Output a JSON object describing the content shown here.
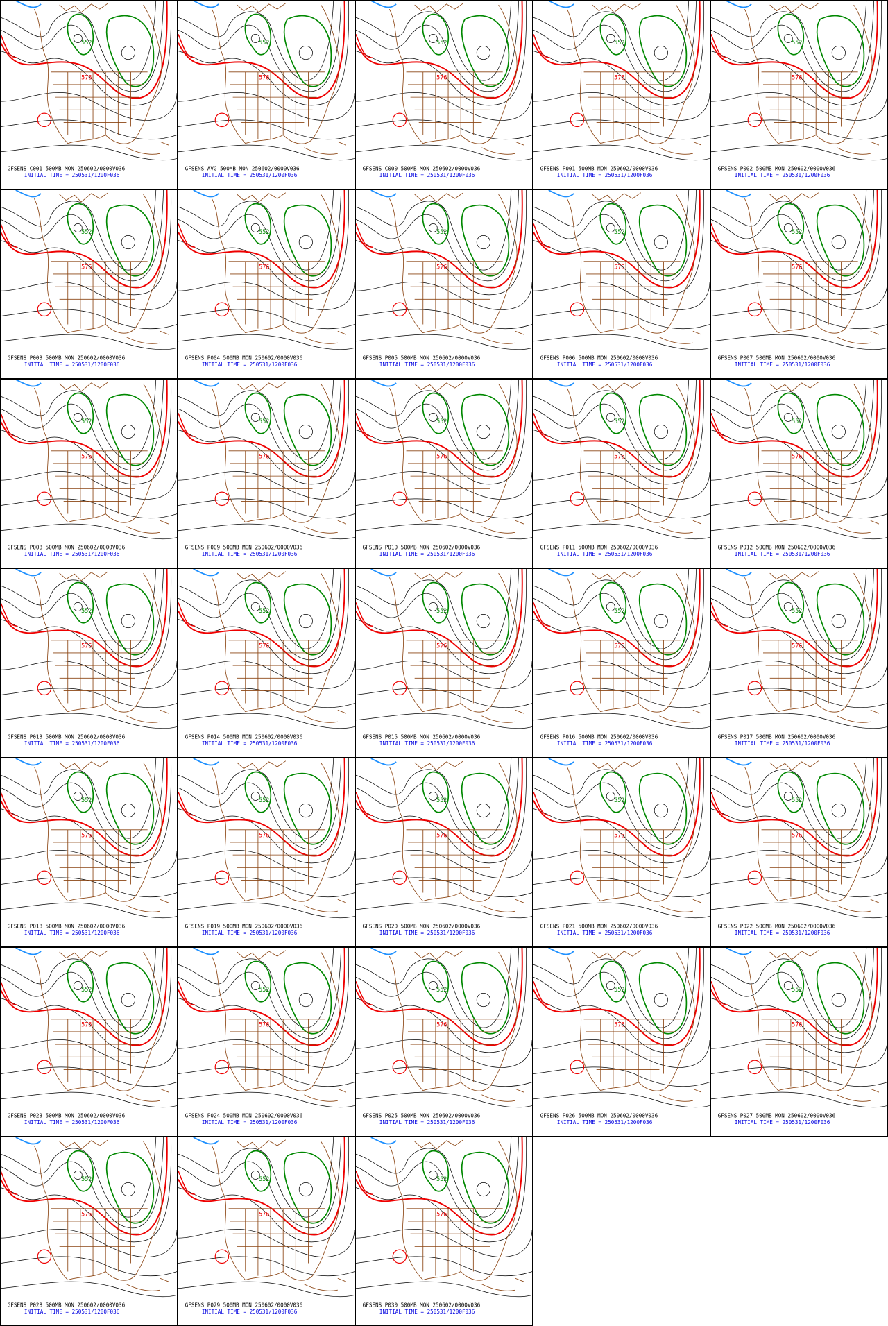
{
  "panels": [
    {
      "title": "GFSENS C001 500MB MON 250602/0000V036",
      "init": "INITIAL TIME = 250531/1200F036",
      "contour_labels": [
        "552",
        "576"
      ]
    },
    {
      "title": "GFSENS AVG 500MB MON 250602/0000V036",
      "init": "INITIAL TIME = 250531/1200F036",
      "contour_labels": [
        "552",
        "576"
      ]
    },
    {
      "title": "GFSENS C000 500MB MON 250602/0000V036",
      "init": "INITIAL TIME = 250531/1200F036",
      "contour_labels": [
        "552",
        "576"
      ]
    },
    {
      "title": "GFSENS P001 500MB MON 250602/0000V036",
      "init": "INITIAL TIME = 250531/1200F036",
      "contour_labels": [
        "552",
        "576"
      ]
    },
    {
      "title": "GFSENS P002 500MB MON 250602/0000V036",
      "init": "INITIAL TIME = 250531/1200F036",
      "contour_labels": [
        "552",
        "576"
      ]
    },
    {
      "title": "GFSENS P003 500MB MON 250602/0000V036",
      "init": "INITIAL TIME = 250531/1200F036",
      "contour_labels": [
        "552",
        "576"
      ]
    },
    {
      "title": "GFSENS P004 500MB MON 250602/0000V036",
      "init": "INITIAL TIME = 250531/1200F036",
      "contour_labels": [
        "552",
        "576"
      ]
    },
    {
      "title": "GFSENS P005 500MB MON 250602/0000V036",
      "init": "INITIAL TIME = 250531/1200F036",
      "contour_labels": [
        "552",
        "576"
      ]
    },
    {
      "title": "GFSENS P006 500MB MON 250602/0000V036",
      "init": "INITIAL TIME = 250531/1200F036",
      "contour_labels": [
        "552",
        "576"
      ]
    },
    {
      "title": "GFSENS P007 500MB MON 250602/0000V036",
      "init": "INITIAL TIME = 250531/1200F036",
      "contour_labels": [
        "552",
        "576"
      ]
    },
    {
      "title": "GFSENS P008 500MB MON 250602/0000V036",
      "init": "INITIAL TIME = 250531/1200F036",
      "contour_labels": [
        "552",
        "576"
      ]
    },
    {
      "title": "GFSENS P009 500MB MON 250602/0000V036",
      "init": "INITIAL TIME = 250531/1200F036",
      "contour_labels": [
        "552",
        "576"
      ]
    },
    {
      "title": "GFSENS P010 500MB MON 250602/0000V036",
      "init": "INITIAL TIME = 250531/1200F036",
      "contour_labels": [
        "552",
        "576"
      ]
    },
    {
      "title": "GFSENS P011 500MB MON 250602/0000V036",
      "init": "INITIAL TIME = 250531/1200F036",
      "contour_labels": [
        "552",
        "576"
      ]
    },
    {
      "title": "GFSENS P012 500MB MON 250602/0000V036",
      "init": "INITIAL TIME = 250531/1200F036",
      "contour_labels": [
        "552",
        "576"
      ]
    },
    {
      "title": "GFSENS P013 500MB MON 250602/0000V036",
      "init": "INITIAL TIME = 250531/1200F036",
      "contour_labels": [
        "552",
        "576"
      ]
    },
    {
      "title": "GFSENS P014 500MB MON 250602/0000V036",
      "init": "INITIAL TIME = 250531/1200F036",
      "contour_labels": [
        "552",
        "576"
      ]
    },
    {
      "title": "GFSENS P015 500MB MON 250602/0000V036",
      "init": "INITIAL TIME = 250531/1200F036",
      "contour_labels": [
        "552",
        "576"
      ]
    },
    {
      "title": "GFSENS P016 500MB MON 250602/0000V036",
      "init": "INITIAL TIME = 250531/1200F036",
      "contour_labels": [
        "552",
        "576"
      ]
    },
    {
      "title": "GFSENS P017 500MB MON 250602/0000V036",
      "init": "INITIAL TIME = 250531/1200F036",
      "contour_labels": [
        "552",
        "576"
      ]
    },
    {
      "title": "GFSENS P018 500MB MON 250602/0000V036",
      "init": "INITIAL TIME = 250531/1200F036",
      "contour_labels": [
        "552",
        "576"
      ]
    },
    {
      "title": "GFSENS P019 500MB MON 250602/0000V036",
      "init": "INITIAL TIME = 250531/1200F036",
      "contour_labels": [
        "552",
        "576"
      ]
    },
    {
      "title": "GFSENS P020 500MB MON 250602/0000V036",
      "init": "INITIAL TIME = 250531/1200F036",
      "contour_labels": [
        "552",
        "576"
      ]
    },
    {
      "title": "GFSENS P021 500MB MON 250602/0000V036",
      "init": "INITIAL TIME = 250531/1200F036",
      "contour_labels": [
        "552",
        "576"
      ]
    },
    {
      "title": "GFSENS P022 500MB MON 250602/0000V036",
      "init": "INITIAL TIME = 250531/1200F036",
      "contour_labels": [
        "552",
        "576"
      ]
    },
    {
      "title": "GFSENS P023 500MB MON 250602/0000V036",
      "init": "INITIAL TIME = 250531/1200F036",
      "contour_labels": [
        "552",
        "576"
      ]
    },
    {
      "title": "GFSENS P024 500MB MON 250602/0000V036",
      "init": "INITIAL TIME = 250531/1200F036",
      "contour_labels": [
        "552",
        "576"
      ]
    },
    {
      "title": "GFSENS P025 500MB MON 250602/0000V036",
      "init": "INITIAL TIME = 250531/1200F036",
      "contour_labels": [
        "552",
        "576"
      ]
    },
    {
      "title": "GFSENS P026 500MB MON 250602/0000V036",
      "init": "INITIAL TIME = 250531/1200F036",
      "contour_labels": [
        "552",
        "576"
      ]
    },
    {
      "title": "GFSENS P027 500MB MON 250602/0000V036",
      "init": "INITIAL TIME = 250531/1200F036",
      "contour_labels": [
        "552",
        "576"
      ]
    },
    {
      "title": "GFSENS P028 500MB MON 250602/0000V036",
      "init": "INITIAL TIME = 250531/1200F036",
      "contour_labels": [
        "552",
        "576"
      ]
    },
    {
      "title": "GFSENS P029 500MB MON 250602/0000V036",
      "init": "INITIAL TIME = 250531/1200F036",
      "contour_labels": [
        "552",
        "576"
      ]
    },
    {
      "title": "GFSENS P030 500MB MON 250602/0000V036",
      "init": "INITIAL TIME = 250531/1200F036",
      "contour_labels": [
        "552",
        "576"
      ]
    }
  ]
}
